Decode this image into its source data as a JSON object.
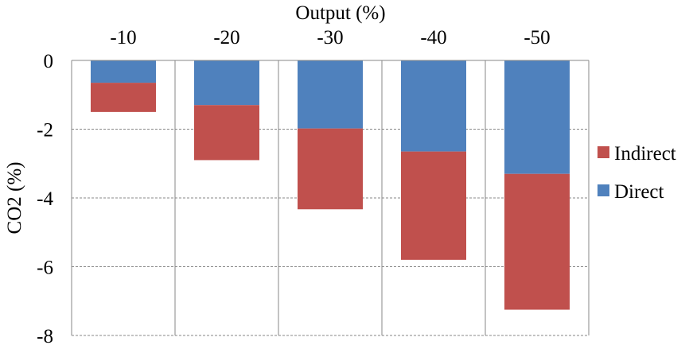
{
  "chart_data": {
    "type": "bar",
    "stacked": true,
    "title": "",
    "xlabel": "Output (%)",
    "ylabel": "CO2 (%)",
    "x_axis_position": "top",
    "categories": [
      "-10",
      "-20",
      "-30",
      "-40",
      "-50"
    ],
    "series": [
      {
        "name": "Direct",
        "color": "#4f81bd",
        "values": [
          -0.65,
          -1.3,
          -1.98,
          -2.65,
          -3.3
        ]
      },
      {
        "name": "Indirect",
        "color": "#c0504d",
        "values": [
          -0.85,
          -1.6,
          -2.35,
          -3.15,
          -3.95
        ]
      }
    ],
    "ylim": [
      -8,
      0
    ],
    "yticks": [
      "0",
      "-2",
      "-4",
      "-6",
      "-8"
    ],
    "grid": "dashed horizontal",
    "category_dividers": true,
    "legend": {
      "placement": "right",
      "entries": [
        {
          "name": "Indirect",
          "color": "#c0504d"
        },
        {
          "name": "Direct",
          "color": "#4f81bd"
        }
      ]
    }
  }
}
